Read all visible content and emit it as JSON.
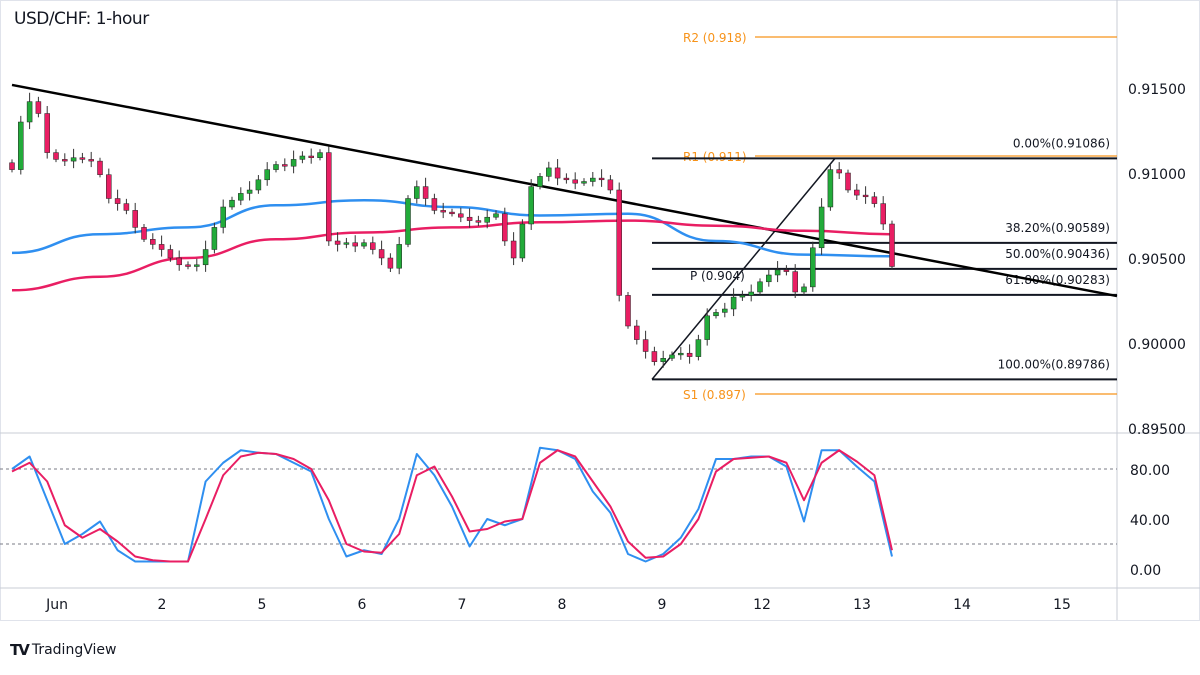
{
  "chart_data": {
    "type": "candlestick",
    "title": "USD/CHF: 1-hour",
    "price_axis": {
      "ticks": [
        "0.91500",
        "0.91000",
        "0.90500",
        "0.90000",
        "0.89500"
      ],
      "tick_values": [
        0.915,
        0.91,
        0.905,
        0.9,
        0.895
      ],
      "range": [
        0.8947,
        0.9205
      ]
    },
    "time_axis": {
      "ticks": [
        "Jun",
        "2",
        "5",
        "6",
        "7",
        "8",
        "9",
        "12",
        "13",
        "14",
        "15"
      ]
    },
    "closes": [
      0.9102,
      0.913,
      0.9142,
      0.9135,
      0.9112,
      0.9108,
      0.9107,
      0.9109,
      0.9108,
      0.9107,
      0.9099,
      0.9085,
      0.9082,
      0.9078,
      0.9068,
      0.9061,
      0.9058,
      0.9055,
      0.905,
      0.9046,
      0.9045,
      0.9046,
      0.9055,
      0.9068,
      0.908,
      0.9084,
      0.9088,
      0.909,
      0.9096,
      0.9102,
      0.9105,
      0.9104,
      0.9108,
      0.911,
      0.9109,
      0.9112,
      0.906,
      0.9058,
      0.9059,
      0.9057,
      0.9059,
      0.9055,
      0.905,
      0.9044,
      0.9058,
      0.9085,
      0.9092,
      0.9085,
      0.9078,
      0.9077,
      0.9076,
      0.9074,
      0.9072,
      0.9071,
      0.9074,
      0.9076,
      0.906,
      0.905,
      0.907,
      0.9092,
      0.9098,
      0.9103,
      0.9097,
      0.9096,
      0.9094,
      0.9095,
      0.9097,
      0.9096,
      0.909,
      0.9028,
      0.901,
      0.9002,
      0.8995,
      0.8989,
      0.8991,
      0.8993,
      0.8994,
      0.8992,
      0.9002,
      0.9016,
      0.9018,
      0.902,
      0.9027,
      0.9028,
      0.903,
      0.9036,
      0.904,
      0.9043,
      0.9042,
      0.903,
      0.9033,
      0.9056,
      0.908,
      0.9102,
      0.91,
      0.909,
      0.9087,
      0.9086,
      0.9082,
      0.907,
      0.9045
    ],
    "ma_blue": [
      0.9053,
      0.9064,
      0.9068,
      0.9081,
      0.9084,
      0.908,
      0.9075,
      0.9076,
      0.906,
      0.9052,
      0.9051
    ],
    "ma_pink": [
      0.9031,
      0.9039,
      0.905,
      0.9061,
      0.9065,
      0.9068,
      0.9071,
      0.9072,
      0.9069,
      0.9066,
      0.9064
    ],
    "trendline": [
      0.91518,
      0.90276
    ],
    "fib_swing": {
      "low": 0.89786,
      "high": 0.91086
    },
    "fib_levels": [
      {
        "label": "0.00%(0.91086)",
        "value": 0.91086
      },
      {
        "label": "38.20%(0.90589)",
        "value": 0.90589
      },
      {
        "label": "50.00%(0.90436)",
        "value": 0.90436
      },
      {
        "label": "61.80%(0.90283)",
        "value": 0.90283
      },
      {
        "label": "100.00%(0.89786)",
        "value": 0.89786
      }
    ],
    "pivots": [
      {
        "label": "R2 (0.918)",
        "value": 0.918,
        "line": true
      },
      {
        "label": "R1 (0.911)",
        "value": 0.911,
        "line": true
      },
      {
        "label": "P (0.904)",
        "value": 0.904,
        "line": false
      },
      {
        "label": "S1 (0.897)",
        "value": 0.897,
        "line": true
      }
    ],
    "oscillator": {
      "ticks": [
        "80.00",
        "40.00",
        "0.00"
      ],
      "tick_values": [
        80,
        40,
        0
      ],
      "range": [
        -2,
        100
      ],
      "bands": [
        80,
        20
      ],
      "k": [
        80,
        90,
        55,
        20,
        28,
        38,
        15,
        6,
        6,
        6,
        6,
        70,
        85,
        95,
        93,
        92,
        85,
        78,
        40,
        10,
        15,
        12,
        40,
        92,
        75,
        50,
        18,
        40,
        35,
        40,
        97,
        95,
        88,
        62,
        45,
        12,
        6,
        12,
        25,
        48,
        88,
        88,
        90,
        90,
        82,
        38,
        95,
        95,
        82,
        70,
        10
      ],
      "d": [
        78,
        85,
        70,
        35,
        25,
        32,
        22,
        10,
        7,
        6,
        6,
        40,
        75,
        90,
        93,
        92,
        88,
        80,
        55,
        20,
        14,
        13,
        28,
        75,
        82,
        58,
        30,
        32,
        38,
        40,
        85,
        95,
        90,
        70,
        50,
        22,
        9,
        10,
        20,
        40,
        78,
        88,
        89,
        90,
        85,
        55,
        85,
        95,
        86,
        75,
        15
      ]
    },
    "colors": {
      "up": "#22ab3a",
      "down": "#e91e63",
      "ma_blue": "#2f8ff0",
      "ma_pink": "#e91e63",
      "pivot": "#f7931a",
      "fib": "#131722",
      "k": "#2f8ff0",
      "d": "#e91e63"
    }
  },
  "branding": {
    "logo_text": "TradingView"
  }
}
